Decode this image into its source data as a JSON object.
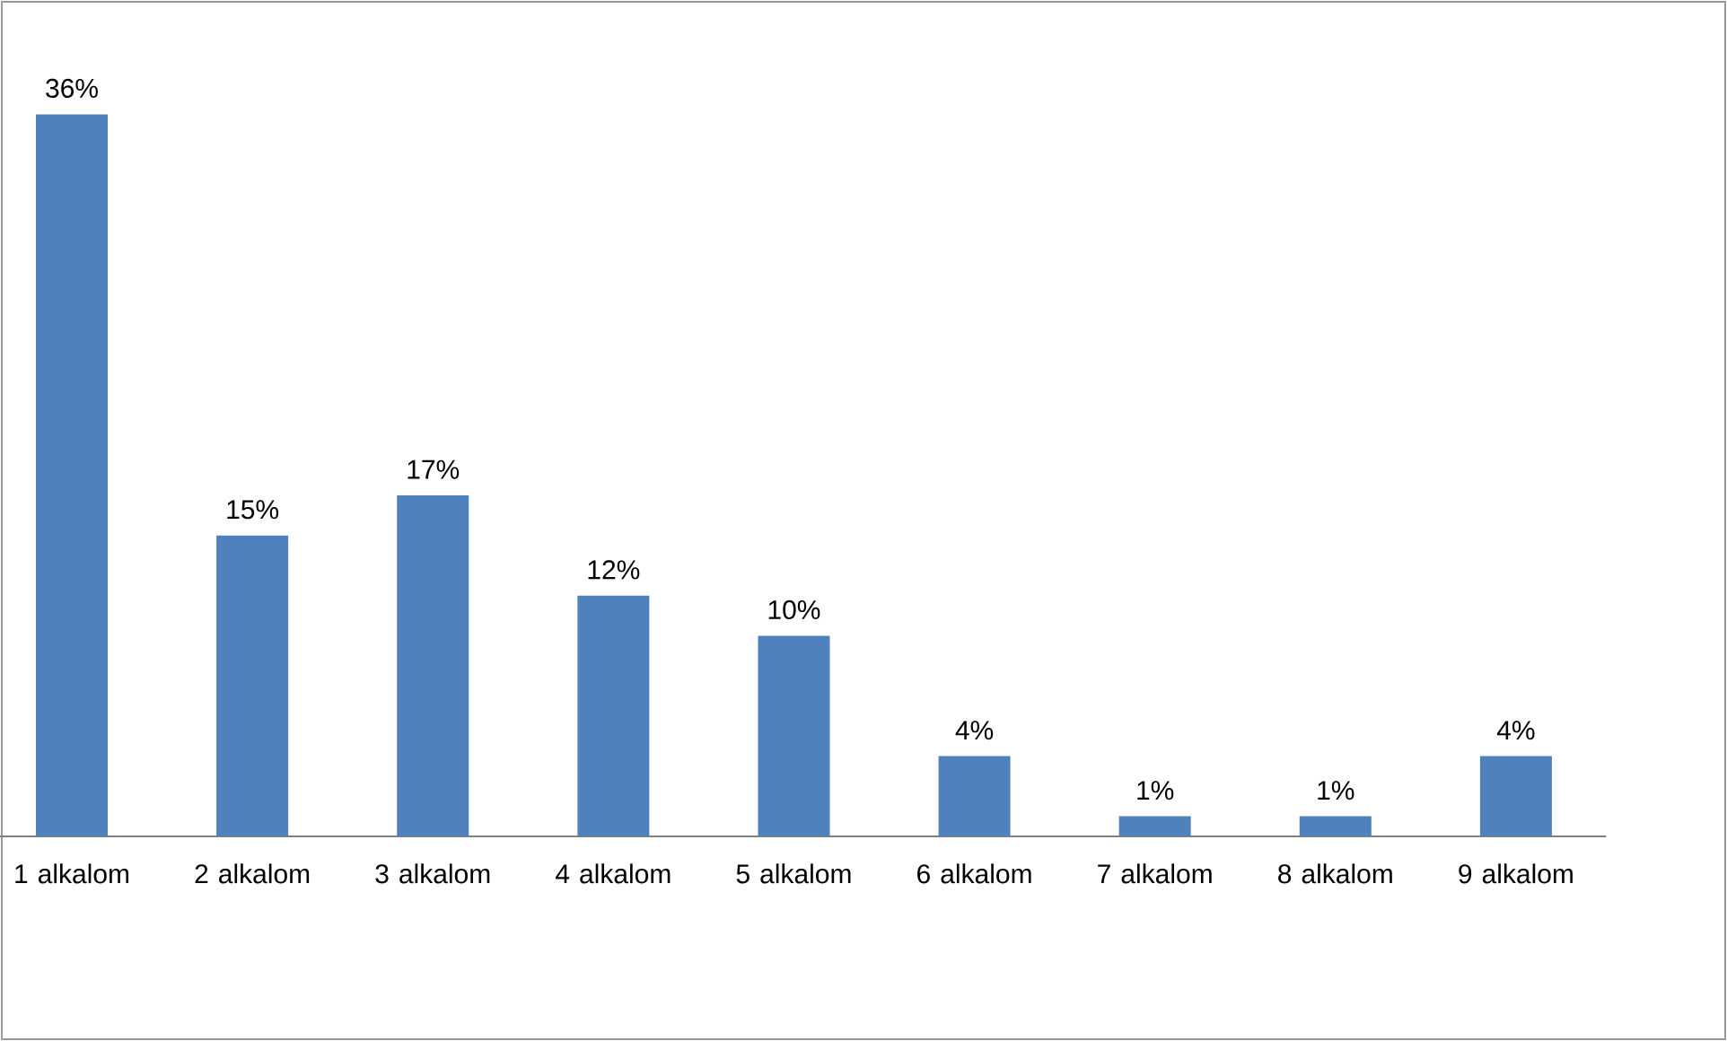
{
  "chart_data": {
    "type": "bar",
    "categories": [
      "1 alkalom",
      "2 alkalom",
      "3 alkalom",
      "4 alkalom",
      "5 alkalom",
      "6 alkalom",
      "7 alkalom",
      "8 alkalom",
      "9 alkalom"
    ],
    "values": [
      36,
      15,
      17,
      12,
      10,
      4,
      1,
      1,
      4
    ],
    "value_labels": [
      "36%",
      "15%",
      "17%",
      "12%",
      "10%",
      "4%",
      "1%",
      "1%",
      "4%"
    ],
    "color": "#4f81bd"
  }
}
